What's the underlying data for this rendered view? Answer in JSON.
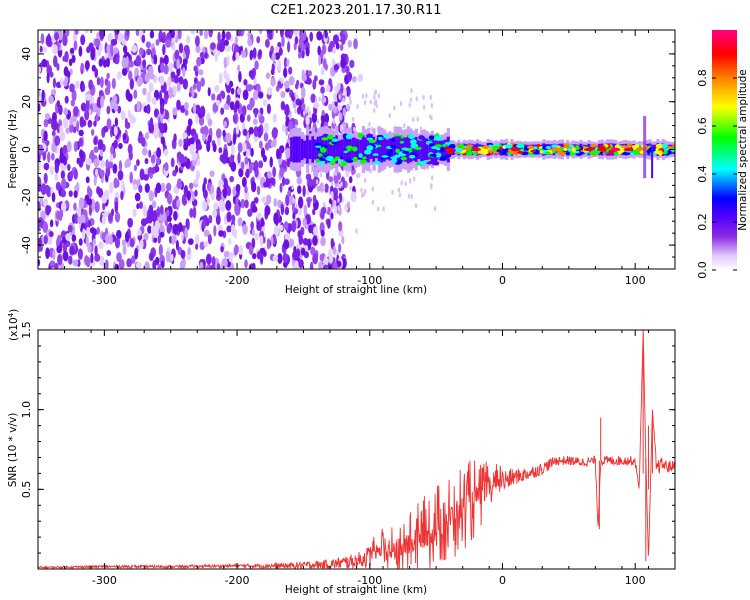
{
  "title": "C2E1.2023.201.17.30.R11",
  "chart_data": [
    {
      "type": "heatmap",
      "title": "C2E1.2023.201.17.30.R11",
      "xlabel": "Height of straight line (km)",
      "ylabel": "Frequency (Hz)",
      "xlim": [
        -350,
        130
      ],
      "ylim": [
        -50,
        50
      ],
      "x_ticks": [
        -300,
        -200,
        -100,
        0,
        100
      ],
      "y_ticks": [
        -40,
        -20,
        0,
        20,
        40
      ],
      "colorbar": {
        "label": "Normalized spectral amplitude",
        "range": [
          0.0,
          1.0
        ],
        "ticks": [
          0.0,
          0.2,
          0.4,
          0.6,
          0.8
        ],
        "colormap": [
          "#ffffff",
          "#e0c8ff",
          "#8a2be2",
          "#5500ff",
          "#0000ff",
          "#00ffff",
          "#00ff00",
          "#ffff00",
          "#ff8000",
          "#ff0000",
          "#ff0080"
        ]
      },
      "noise_region": {
        "x_start": -350,
        "x_end": -115,
        "freq_range": [
          -50,
          50
        ]
      },
      "signal_band": {
        "x_start": -160,
        "x_end": 130,
        "center_freq": 0
      }
    },
    {
      "type": "line",
      "xlabel": "Height of straight line (km)",
      "ylabel": "SNR (10 * v/v)",
      "y_scale_note": "(x10",
      "y_scale_exp": "4",
      "y_scale_close": ")",
      "xlim": [
        -350,
        130
      ],
      "ylim": [
        0,
        1.5
      ],
      "x_ticks": [
        -300,
        -200,
        -100,
        0,
        100
      ],
      "y_ticks": [
        0.5,
        1.0,
        1.5
      ],
      "series": [
        {
          "color": "#ee3333",
          "x": [
            -350,
            -300,
            -250,
            -200,
            -160,
            -130,
            -110,
            -100,
            -90,
            -80,
            -70,
            -60,
            -50,
            -40,
            -30,
            -20,
            -10,
            0,
            10,
            20,
            30,
            40,
            50,
            60,
            70,
            72,
            74,
            80,
            90,
            100,
            103,
            106,
            108,
            110,
            113,
            116,
            120,
            125,
            130
          ],
          "y": [
            0.01,
            0.015,
            0.015,
            0.02,
            0.02,
            0.03,
            0.05,
            0.08,
            0.12,
            0.1,
            0.15,
            0.2,
            0.25,
            0.32,
            0.38,
            0.45,
            0.5,
            0.55,
            0.58,
            0.6,
            0.63,
            0.68,
            0.68,
            0.67,
            0.68,
            0.25,
            0.68,
            0.68,
            0.68,
            0.68,
            0.5,
            1.5,
            0.7,
            0.05,
            1.0,
            0.63,
            0.66,
            0.64,
            0.65
          ],
          "noise_amplitude": [
            0.005,
            0.008,
            0.008,
            0.01,
            0.02,
            0.03,
            0.05,
            0.07,
            0.1,
            0.12,
            0.15,
            0.18,
            0.2,
            0.22,
            0.2,
            0.18,
            0.12,
            0.08,
            0.05,
            0.04,
            0.04,
            0.03,
            0.03,
            0.03,
            0.03,
            0.0,
            0.03,
            0.03,
            0.03,
            0.03,
            0.0,
            0.0,
            0.0,
            0.0,
            0.0,
            0.05,
            0.04,
            0.04,
            0.03
          ]
        }
      ]
    }
  ]
}
